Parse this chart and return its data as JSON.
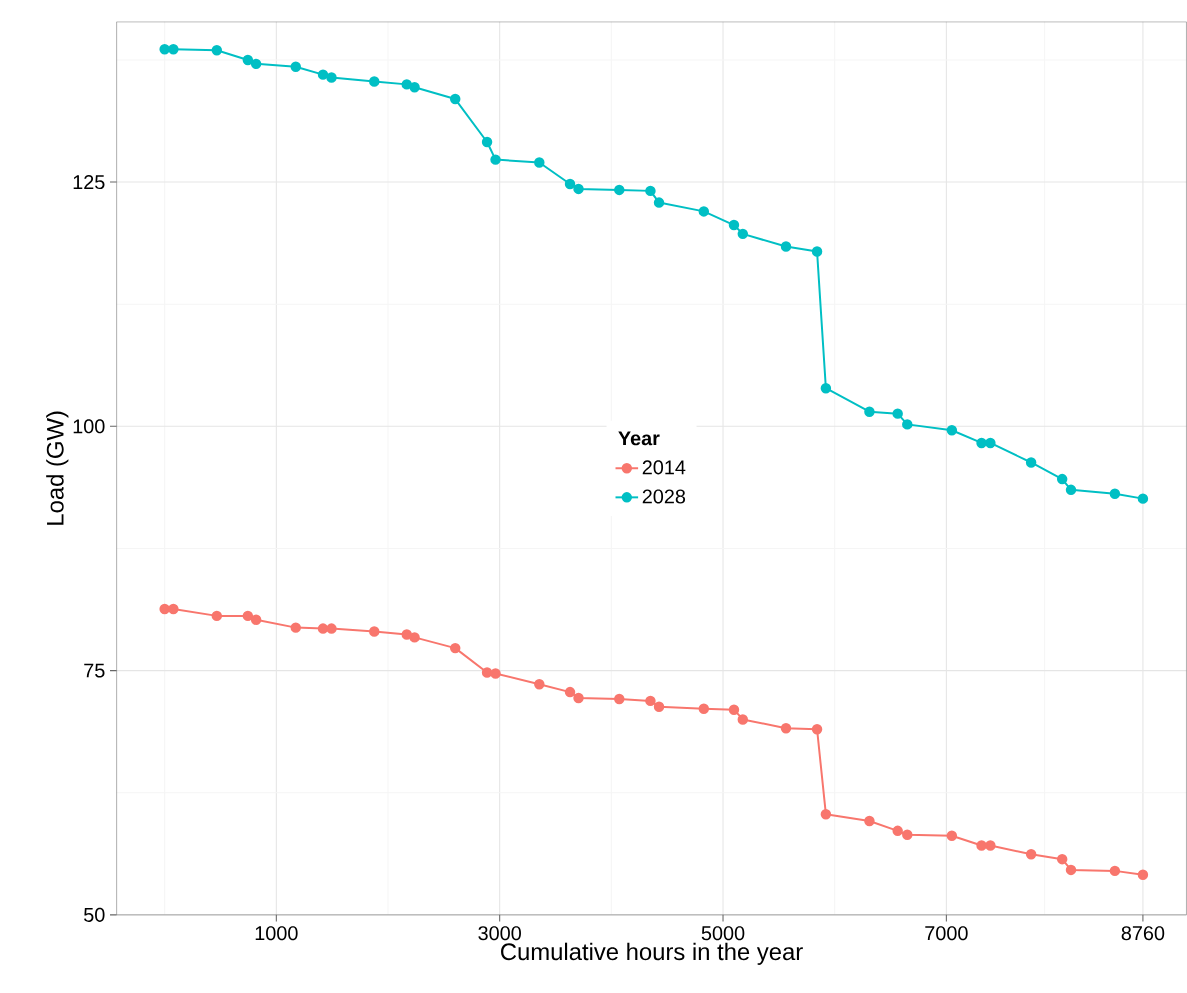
{
  "chart_data": {
    "type": "line",
    "xlabel": "Cumulative hours in the year",
    "ylabel": "Load (GW)",
    "legend_title": "Year",
    "x": [
      0,
      78,
      467,
      745,
      819,
      1174,
      1418,
      1494,
      1877,
      2168,
      2238,
      2602,
      2887,
      2963,
      3355,
      3630,
      3706,
      4071,
      4350,
      4427,
      4828,
      5098,
      5177,
      5564,
      5842,
      5921,
      6311,
      6564,
      6650,
      7049,
      7315,
      7394,
      7759,
      8037,
      8116,
      8509,
      8760
    ],
    "series": [
      {
        "name": "2014",
        "color": "#f8766d",
        "values": [
          81.3,
          81.3,
          80.6,
          80.6,
          80.2,
          79.4,
          79.3,
          79.3,
          79.0,
          78.7,
          78.4,
          77.3,
          74.8,
          74.7,
          73.6,
          72.8,
          72.2,
          72.1,
          71.9,
          71.3,
          71.1,
          71.0,
          70.0,
          69.1,
          69.0,
          60.3,
          59.6,
          58.6,
          58.2,
          58.1,
          57.1,
          57.1,
          56.2,
          55.7,
          54.6,
          54.5,
          54.1
        ]
      },
      {
        "name": "2028",
        "color": "#00bfc4",
        "values": [
          138.6,
          138.6,
          138.5,
          137.5,
          137.1,
          136.8,
          136.0,
          135.7,
          135.3,
          135.0,
          134.7,
          133.5,
          129.1,
          127.3,
          127.0,
          124.8,
          124.3,
          124.2,
          124.1,
          122.9,
          122.0,
          120.6,
          119.7,
          118.4,
          117.9,
          103.9,
          101.5,
          101.3,
          100.2,
          99.6,
          98.3,
          98.3,
          96.3,
          94.6,
          93.5,
          93.1,
          92.6
        ]
      }
    ],
    "xlim": [
      -430,
      9150
    ],
    "ylim": [
      50,
      141.4
    ],
    "xticks": [
      1000,
      3000,
      5000,
      7000,
      8760
    ],
    "yticks": [
      50,
      75,
      100,
      125
    ],
    "grid": true,
    "legend": "center",
    "marker": "circle",
    "line_style": "solid"
  }
}
